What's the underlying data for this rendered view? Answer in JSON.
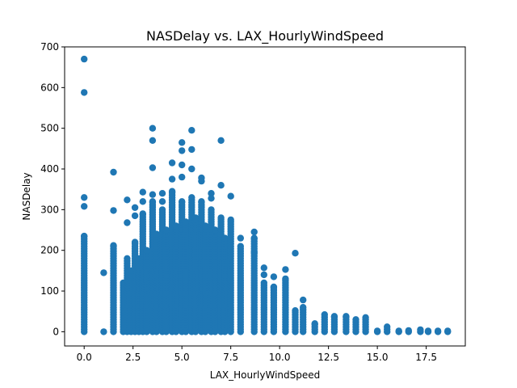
{
  "chart_data": {
    "type": "scatter",
    "title": "NASDelay vs. LAX_HourlyWindSpeed",
    "xlabel": "LAX_HourlyWindSpeed",
    "ylabel": "NASDelay",
    "xlim": [
      -1.0,
      19.5
    ],
    "ylim": [
      -35,
      700
    ],
    "xticks": [
      "0.0",
      "2.5",
      "5.0",
      "7.5",
      "10.0",
      "12.5",
      "15.0",
      "17.5"
    ],
    "xtick_values": [
      0,
      2.5,
      5,
      7.5,
      10,
      12.5,
      15,
      17.5
    ],
    "yticks": [
      "0",
      "100",
      "200",
      "300",
      "400",
      "500",
      "600",
      "700"
    ],
    "ytick_values": [
      0,
      100,
      200,
      300,
      400,
      500,
      600,
      700
    ],
    "grid": false,
    "marker_color": "#1f77b4",
    "columns": [
      {
        "x": 0,
        "max": 235,
        "outliers": [
          670,
          588,
          330,
          308
        ]
      },
      {
        "x": 1.0,
        "max": 0,
        "outliers": [
          145
        ]
      },
      {
        "x": 1.5,
        "max": 212,
        "outliers": [
          392,
          298
        ]
      },
      {
        "x": 2.0,
        "max": 120,
        "outliers": []
      },
      {
        "x": 2.2,
        "max": 180,
        "outliers": [
          324,
          268
        ]
      },
      {
        "x": 2.4,
        "max": 150,
        "outliers": []
      },
      {
        "x": 2.6,
        "max": 220,
        "outliers": [
          305,
          285
        ]
      },
      {
        "x": 2.8,
        "max": 180,
        "outliers": []
      },
      {
        "x": 3.0,
        "max": 290,
        "outliers": [
          343,
          320
        ]
      },
      {
        "x": 3.2,
        "max": 200,
        "outliers": []
      },
      {
        "x": 3.5,
        "max": 320,
        "outliers": [
          500,
          470,
          403,
          337
        ]
      },
      {
        "x": 3.7,
        "max": 240,
        "outliers": []
      },
      {
        "x": 4.0,
        "max": 300,
        "outliers": [
          340,
          320
        ]
      },
      {
        "x": 4.2,
        "max": 250,
        "outliers": []
      },
      {
        "x": 4.5,
        "max": 345,
        "outliers": [
          415,
          375
        ]
      },
      {
        "x": 4.7,
        "max": 260,
        "outliers": []
      },
      {
        "x": 5.0,
        "max": 320,
        "outliers": [
          465,
          445,
          410,
          380
        ]
      },
      {
        "x": 5.2,
        "max": 270,
        "outliers": []
      },
      {
        "x": 5.5,
        "max": 330,
        "outliers": [
          495,
          448,
          400
        ]
      },
      {
        "x": 5.7,
        "max": 280,
        "outliers": []
      },
      {
        "x": 6.0,
        "max": 320,
        "outliers": [
          378,
          370
        ]
      },
      {
        "x": 6.2,
        "max": 260,
        "outliers": []
      },
      {
        "x": 6.5,
        "max": 300,
        "outliers": [
          340,
          328
        ]
      },
      {
        "x": 6.7,
        "max": 250,
        "outliers": []
      },
      {
        "x": 7.0,
        "max": 280,
        "outliers": [
          470,
          360
        ]
      },
      {
        "x": 7.2,
        "max": 230,
        "outliers": []
      },
      {
        "x": 7.5,
        "max": 275,
        "outliers": [
          333
        ]
      },
      {
        "x": 8.0,
        "max": 210,
        "outliers": [
          230
        ]
      },
      {
        "x": 8.7,
        "max": 230,
        "outliers": [
          245,
          195
        ]
      },
      {
        "x": 9.2,
        "max": 120,
        "outliers": [
          157,
          140
        ]
      },
      {
        "x": 9.7,
        "max": 110,
        "outliers": [
          135
        ]
      },
      {
        "x": 10.3,
        "max": 130,
        "outliers": [
          153
        ]
      },
      {
        "x": 10.8,
        "max": 52,
        "outliers": [
          193
        ]
      },
      {
        "x": 11.2,
        "max": 60,
        "outliers": [
          78
        ]
      },
      {
        "x": 11.8,
        "max": 20,
        "outliers": []
      },
      {
        "x": 12.3,
        "max": 42,
        "outliers": []
      },
      {
        "x": 12.8,
        "max": 38,
        "outliers": []
      },
      {
        "x": 13.4,
        "max": 38,
        "outliers": []
      },
      {
        "x": 13.9,
        "max": 30,
        "outliers": []
      },
      {
        "x": 14.4,
        "max": 35,
        "outliers": []
      },
      {
        "x": 15.0,
        "max": 2,
        "outliers": []
      },
      {
        "x": 15.5,
        "max": 12,
        "outliers": []
      },
      {
        "x": 16.1,
        "max": 2,
        "outliers": []
      },
      {
        "x": 16.6,
        "max": 3,
        "outliers": []
      },
      {
        "x": 17.2,
        "max": 5,
        "outliers": []
      },
      {
        "x": 17.6,
        "max": 2,
        "outliers": []
      },
      {
        "x": 18.1,
        "max": 2,
        "outliers": []
      },
      {
        "x": 18.6,
        "max": 2,
        "outliers": []
      }
    ]
  }
}
